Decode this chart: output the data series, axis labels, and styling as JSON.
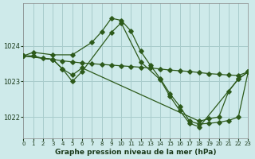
{
  "title": "Graphe pression niveau de la mer (hPa)",
  "bg_color": "#ceeaea",
  "grid_color": "#a8cccc",
  "line_color": "#2d5a1b",
  "xlim": [
    0,
    23
  ],
  "ylim": [
    1021.4,
    1025.2
  ],
  "yticks": [
    1022,
    1023,
    1024
  ],
  "xticks": [
    0,
    1,
    2,
    3,
    4,
    5,
    6,
    7,
    8,
    9,
    10,
    11,
    12,
    13,
    14,
    15,
    16,
    17,
    18,
    19,
    20,
    21,
    22,
    23
  ],
  "line1_x": [
    0,
    1,
    3,
    5,
    7,
    8,
    9,
    10,
    11,
    12,
    13,
    14,
    15,
    16,
    17,
    18,
    19,
    20,
    21,
    22,
    23
  ],
  "line1_y": [
    1023.72,
    1023.82,
    1023.75,
    1023.75,
    1024.1,
    1024.4,
    1024.78,
    1024.72,
    1024.42,
    1023.85,
    1023.45,
    1023.08,
    1022.65,
    1022.3,
    1021.88,
    1021.8,
    1021.82,
    1021.85,
    1021.9,
    1022.0,
    1023.27
  ],
  "line2_x": [
    0,
    1,
    2,
    3,
    4,
    5,
    6,
    7,
    8,
    9,
    10,
    11,
    12,
    13,
    14,
    15,
    16,
    17,
    18,
    19,
    20,
    21,
    22,
    23
  ],
  "line2_y": [
    1023.72,
    1023.72,
    1023.65,
    1023.62,
    1023.58,
    1023.55,
    1023.52,
    1023.5,
    1023.48,
    1023.46,
    1023.44,
    1023.42,
    1023.4,
    1023.38,
    1023.35,
    1023.32,
    1023.3,
    1023.28,
    1023.25,
    1023.22,
    1023.2,
    1023.18,
    1023.17,
    1023.27
  ],
  "line3_x": [
    0,
    3,
    4,
    5,
    6,
    9,
    10,
    12,
    14,
    15,
    16,
    17,
    18,
    22,
    23
  ],
  "line3_y": [
    1023.72,
    1023.62,
    1023.35,
    1023.0,
    1023.28,
    1024.38,
    1024.65,
    1023.55,
    1023.05,
    1022.58,
    1022.18,
    1021.82,
    1021.72,
    1023.07,
    1023.27
  ],
  "line4_x": [
    0,
    3,
    4,
    5,
    6,
    18,
    19,
    20,
    21,
    22,
    23
  ],
  "line4_y": [
    1023.72,
    1023.62,
    1023.35,
    1023.18,
    1023.38,
    1021.88,
    1021.95,
    1022.0,
    1022.72,
    1023.07,
    1023.27
  ]
}
